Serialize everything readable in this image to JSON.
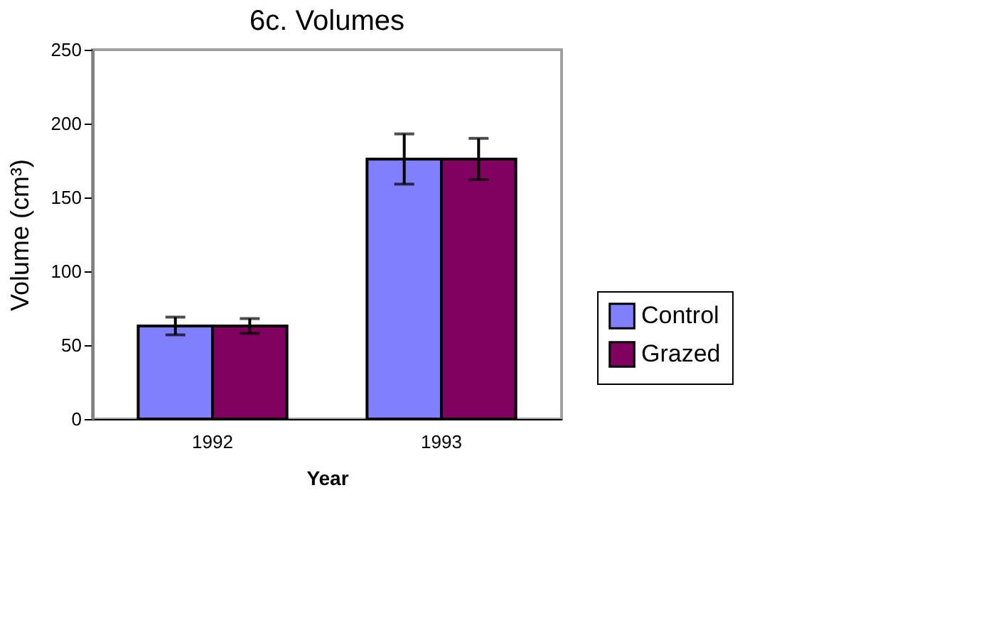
{
  "chart_data": {
    "type": "bar",
    "title": "6c. Volumes",
    "xlabel": "Year",
    "ylabel": "Volume (cm³)",
    "categories": [
      "1992",
      "1993"
    ],
    "series": [
      {
        "name": "Control",
        "color": "#8080ff",
        "values": [
          63,
          176
        ],
        "errors": [
          6,
          17
        ]
      },
      {
        "name": "Grazed",
        "color": "#800060",
        "values": [
          63,
          176
        ],
        "errors": [
          5,
          14
        ]
      }
    ],
    "ylim": [
      0,
      250
    ],
    "yticks": [
      0,
      50,
      100,
      150,
      200,
      250
    ],
    "grid": false,
    "legend": "right"
  }
}
